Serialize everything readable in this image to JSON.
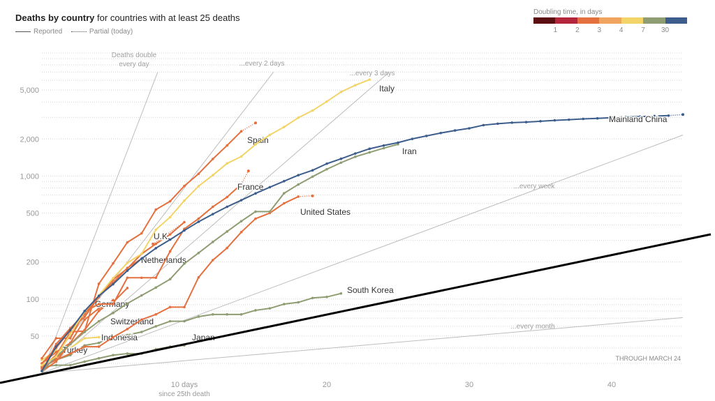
{
  "header": {
    "title_bold": "Deaths by country",
    "title_rest": " for countries with at least 25 deaths",
    "legend_reported": "Reported",
    "legend_partial": "Partial (today)"
  },
  "doubling_legend": {
    "title": "Doubling time, in days",
    "labels": [
      "1",
      "2",
      "3",
      "4",
      "7",
      "30"
    ],
    "colors": [
      "#5a0e12",
      "#b4263c",
      "#e4703f",
      "#f0a45d",
      "#f2d468",
      "#8f9d73",
      "#3d5e8c"
    ]
  },
  "chart_data": {
    "type": "line",
    "title": "Deaths by country",
    "xlabel": "10 days since 25th death",
    "ylabel": "Deaths",
    "y_scale": "log",
    "xlim": [
      0,
      45
    ],
    "ylim": [
      25,
      10000
    ],
    "x_ticks": [
      {
        "value": 10,
        "label": "10 days"
      },
      {
        "value": 20,
        "label": "20"
      },
      {
        "value": 30,
        "label": "30"
      },
      {
        "value": 40,
        "label": "40"
      }
    ],
    "x_tick_sublabel": "since 25th death",
    "y_ticks": [
      {
        "value": 50,
        "label": "50"
      },
      {
        "value": 100,
        "label": "100"
      },
      {
        "value": 200,
        "label": "200"
      },
      {
        "value": 500,
        "label": "500"
      },
      {
        "value": 1000,
        "label": "1,000"
      },
      {
        "value": 2000,
        "label": "2,000"
      },
      {
        "value": 5000,
        "label": "5,000"
      }
    ],
    "note": "THROUGH MARCH 24",
    "guides": [
      {
        "doubling_days": 1,
        "label": "Deaths double\nevery day"
      },
      {
        "doubling_days": 2,
        "label": "...every 2 days"
      },
      {
        "doubling_days": 3,
        "label": "...every 3 days"
      },
      {
        "doubling_days": 7,
        "label": "...every week"
      },
      {
        "doubling_days": 30,
        "label": "...every month"
      }
    ],
    "series": [
      {
        "name": "Mainland China",
        "label": "Mainland China",
        "color": "#3d5e8c",
        "x": [
          0,
          1,
          2,
          3,
          4,
          5,
          6,
          7,
          8,
          9,
          10,
          11,
          12,
          13,
          14,
          15,
          16,
          17,
          18,
          19,
          20,
          21,
          22,
          23,
          24,
          25,
          26,
          27,
          28,
          29,
          30,
          31,
          32,
          33,
          34,
          35,
          36,
          37,
          38,
          39,
          40,
          41,
          42,
          43,
          44
        ],
        "values": [
          26,
          41,
          56,
          80,
          106,
          132,
          170,
          213,
          259,
          304,
          361,
          425,
          490,
          562,
          636,
          722,
          811,
          908,
          1016,
          1113,
          1259,
          1380,
          1523,
          1665,
          1770,
          1868,
          2004,
          2118,
          2236,
          2345,
          2442,
          2592,
          2663,
          2715,
          2744,
          2788,
          2835,
          2870,
          2912,
          2943,
          2981,
          3012,
          3042,
          3070,
          3097
        ],
        "partial": {
          "x": 45,
          "value": 3160
        }
      },
      {
        "name": "Italy",
        "label": "Italy",
        "color": "#f2d468",
        "x": [
          0,
          1,
          2,
          3,
          4,
          5,
          6,
          7,
          8,
          9,
          10,
          11,
          12,
          13,
          14,
          15,
          16,
          17,
          18,
          19,
          20,
          21,
          22,
          23
        ],
        "values": [
          29,
          34,
          52,
          79,
          107,
          148,
          197,
          233,
          366,
          463,
          631,
          827,
          1016,
          1266,
          1441,
          1809,
          2158,
          2503,
          2978,
          3405,
          4032,
          4825,
          5476,
          6077
        ]
      },
      {
        "name": "Iran",
        "label": "Iran",
        "color": "#8f9d73",
        "x": [
          0,
          1,
          2,
          3,
          4,
          5,
          6,
          7,
          8,
          9,
          10,
          11,
          12,
          13,
          14,
          15,
          16,
          17,
          18,
          19,
          20,
          21,
          22,
          23,
          24,
          25
        ],
        "values": [
          26,
          34,
          43,
          54,
          66,
          77,
          92,
          107,
          124,
          145,
          194,
          237,
          291,
          354,
          429,
          514,
          514,
          724,
          853,
          988,
          1135,
          1284,
          1433,
          1556,
          1685,
          1812
        ]
      },
      {
        "name": "Spain",
        "label": "Spain",
        "color": "#e4703f",
        "x": [
          0,
          1,
          2,
          3,
          4,
          5,
          6,
          7,
          8,
          9,
          10,
          11,
          12,
          13,
          14
        ],
        "values": [
          28,
          35,
          54,
          55,
          133,
          195,
          289,
          342,
          533,
          623,
          830,
          1043,
          1375,
          1772,
          2311
        ],
        "partial": {
          "x": 15,
          "value": 2700
        }
      },
      {
        "name": "France",
        "label": "France",
        "color": "#e4703f",
        "x": [
          0,
          1,
          2,
          3,
          4,
          5,
          6,
          7,
          8,
          9,
          10,
          11,
          12,
          13,
          14
        ],
        "values": [
          33,
          48,
          48,
          79,
          91,
          91,
          149,
          149,
          149,
          244,
          372,
          450,
          562,
          674,
          860
        ],
        "partial": {
          "x": 14.5,
          "value": 1100
        }
      },
      {
        "name": "United States",
        "label": "United States",
        "color": "#e4703f",
        "x": [
          0,
          1,
          2,
          3,
          4,
          5,
          6,
          7,
          8,
          9,
          10,
          11,
          12,
          13,
          14,
          15,
          16,
          17,
          18
        ],
        "values": [
          28,
          32,
          36,
          41,
          41,
          49,
          57,
          68,
          75,
          86,
          86,
          150,
          207,
          260,
          350,
          450,
          500,
          600,
          680
        ],
        "partial": {
          "x": 19,
          "value": 690
        }
      },
      {
        "name": "U.K.",
        "label": "U.K.",
        "color": "#e4703f",
        "x": [
          0,
          1,
          2,
          3,
          4,
          5,
          6,
          7,
          8,
          9,
          10
        ],
        "values": [
          30,
          40,
          56,
          72,
          104,
          144,
          177,
          233,
          281,
          335,
          422
        ],
        "partial": {
          "x": 7.8,
          "value": 280
        }
      },
      {
        "name": "Netherlands",
        "label": "Netherlands",
        "color": "#e4703f",
        "x": [
          0,
          1,
          2,
          3,
          4,
          5,
          6,
          7
        ],
        "values": [
          26,
          43,
          58,
          76,
          106,
          136,
          179,
          213
        ]
      },
      {
        "name": "Germany",
        "label": "Germany",
        "color": "#e4703f",
        "x": [
          0,
          1,
          2,
          3,
          4,
          5,
          6
        ],
        "values": [
          26,
          31,
          44,
          68,
          84,
          94,
          123
        ]
      },
      {
        "name": "Switzerland",
        "label": "Switzerland",
        "color": "#e4703f",
        "x": [
          0,
          1,
          2,
          3,
          4,
          5
        ],
        "values": [
          27,
          33,
          43,
          56,
          80,
          98
        ]
      },
      {
        "name": "South Korea",
        "label": "South Korea",
        "color": "#8f9d73",
        "x": [
          0,
          1,
          2,
          3,
          4,
          5,
          6,
          7,
          8,
          9,
          10,
          11,
          12,
          13,
          14,
          15,
          16,
          17,
          18,
          19,
          20,
          21
        ],
        "values": [
          28,
          32,
          35,
          42,
          44,
          50,
          51,
          54,
          60,
          66,
          66,
          72,
          75,
          75,
          75,
          81,
          84,
          91,
          94,
          102,
          104,
          111
        ]
      },
      {
        "name": "Indonesia",
        "label": "Indonesia",
        "color": "#f2d468",
        "x": [
          0,
          1,
          2,
          3,
          4
        ],
        "values": [
          32,
          38,
          40,
          48,
          49
        ]
      },
      {
        "name": "Japan",
        "label": "Japan",
        "color": "#8f9d73",
        "x": [
          0,
          1,
          2,
          3,
          4,
          5,
          6,
          7,
          8,
          9,
          10
        ],
        "values": [
          28,
          29,
          29,
          31,
          33,
          35,
          36,
          36,
          39,
          41,
          42
        ]
      },
      {
        "name": "Turkey",
        "label": "Turkey",
        "color": "#e4703f",
        "x": [
          0,
          1,
          2
        ],
        "values": [
          30,
          37,
          44
        ]
      }
    ]
  }
}
